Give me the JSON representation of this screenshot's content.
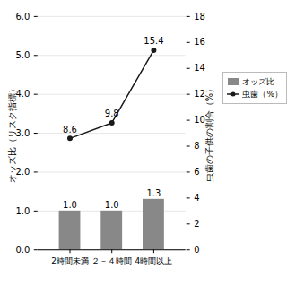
{
  "chart_data": {
    "type": "bar_line",
    "categories": [
      "2時間未満",
      "２－４時間",
      "4時間以上"
    ],
    "series": [
      {
        "name": "オッズ比",
        "type": "bar",
        "color": "#888888",
        "values": [
          1.0,
          1.0,
          1.3
        ],
        "value_labels": [
          "1.0",
          "1.0",
          "1.3"
        ]
      },
      {
        "name": "虫歯（%）",
        "type": "line",
        "color": "#1a1a1a",
        "marker": "circle",
        "axis": "y2",
        "values": [
          8.6,
          9.8,
          15.4
        ]
      }
    ],
    "ylabel": "オッズ比（リスク指標）",
    "y2label": "虫歯の子供の割合（%）",
    "ylim": [
      0,
      6.0
    ],
    "yticks": [
      {
        "value": 0,
        "label": "0.0"
      },
      {
        "value": 1,
        "label": "1.0"
      },
      {
        "value": 2,
        "label": "2.0"
      },
      {
        "value": 3,
        "label": "3.0"
      },
      {
        "value": 4,
        "label": "4.0"
      },
      {
        "value": 5,
        "label": "5.0"
      },
      {
        "value": 6,
        "label": "6.0"
      }
    ],
    "y2lim": [
      0,
      18
    ],
    "y2ticks": [
      0,
      2,
      4,
      6,
      8,
      10,
      12,
      14,
      16,
      18
    ],
    "grid": true,
    "legend": "right",
    "data_labels": true
  }
}
